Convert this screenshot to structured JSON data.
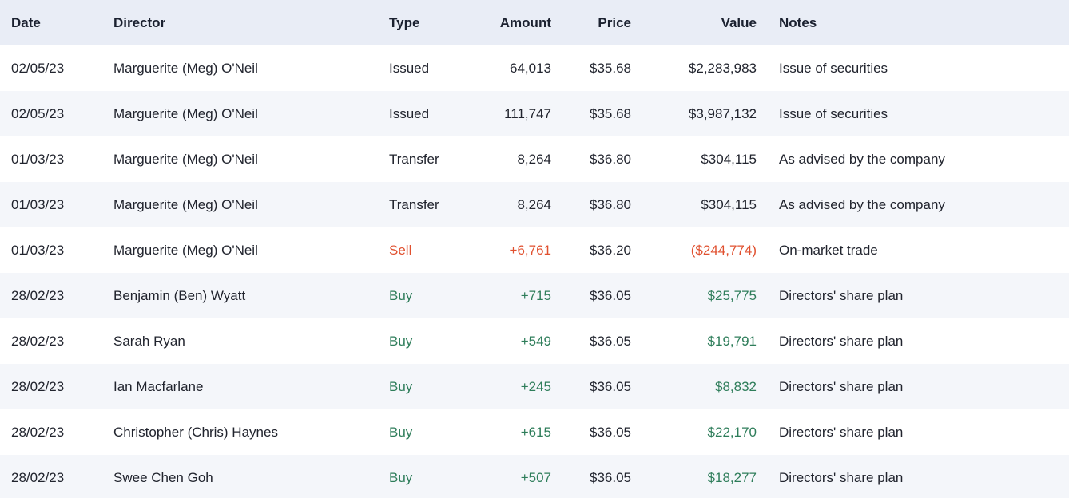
{
  "table": {
    "columns": [
      {
        "key": "date",
        "label": "Date",
        "align": "left"
      },
      {
        "key": "director",
        "label": "Director",
        "align": "left"
      },
      {
        "key": "type",
        "label": "Type",
        "align": "left"
      },
      {
        "key": "amount",
        "label": "Amount",
        "align": "right"
      },
      {
        "key": "price",
        "label": "Price",
        "align": "right"
      },
      {
        "key": "value",
        "label": "Value",
        "align": "right"
      },
      {
        "key": "notes",
        "label": "Notes",
        "align": "left"
      }
    ],
    "rows": [
      {
        "date": "02/05/23",
        "director": "Marguerite (Meg) O'Neil",
        "type": "Issued",
        "amount": "64,013",
        "price": "$35.68",
        "value": "$2,283,983",
        "notes": "Issue of securities",
        "sentiment": "neutral"
      },
      {
        "date": "02/05/23",
        "director": "Marguerite (Meg) O'Neil",
        "type": "Issued",
        "amount": "111,747",
        "price": "$35.68",
        "value": "$3,987,132",
        "notes": "Issue of securities",
        "sentiment": "neutral"
      },
      {
        "date": "01/03/23",
        "director": "Marguerite (Meg) O'Neil",
        "type": "Transfer",
        "amount": "8,264",
        "price": "$36.80",
        "value": "$304,115",
        "notes": "As advised by the company",
        "sentiment": "neutral"
      },
      {
        "date": "01/03/23",
        "director": "Marguerite (Meg) O'Neil",
        "type": "Transfer",
        "amount": "8,264",
        "price": "$36.80",
        "value": "$304,115",
        "notes": "As advised by the company",
        "sentiment": "neutral"
      },
      {
        "date": "01/03/23",
        "director": "Marguerite (Meg) O'Neil",
        "type": "Sell",
        "amount": "+6,761",
        "price": "$36.20",
        "value": "($244,774)",
        "notes": "On-market trade",
        "sentiment": "sell"
      },
      {
        "date": "28/02/23",
        "director": "Benjamin (Ben) Wyatt",
        "type": "Buy",
        "amount": "+715",
        "price": "$36.05",
        "value": "$25,775",
        "notes": "Directors' share plan",
        "sentiment": "buy"
      },
      {
        "date": "28/02/23",
        "director": "Sarah Ryan",
        "type": "Buy",
        "amount": "+549",
        "price": "$36.05",
        "value": "$19,791",
        "notes": "Directors' share plan",
        "sentiment": "buy"
      },
      {
        "date": "28/02/23",
        "director": "Ian Macfarlane",
        "type": "Buy",
        "amount": "+245",
        "price": "$36.05",
        "value": "$8,832",
        "notes": "Directors' share plan",
        "sentiment": "buy"
      },
      {
        "date": "28/02/23",
        "director": "Christopher (Chris) Haynes",
        "type": "Buy",
        "amount": "+615",
        "price": "$36.05",
        "value": "$22,170",
        "notes": "Directors' share plan",
        "sentiment": "buy"
      },
      {
        "date": "28/02/23",
        "director": "Swee Chen Goh",
        "type": "Buy",
        "amount": "+507",
        "price": "$36.05",
        "value": "$18,277",
        "notes": "Directors' share plan",
        "sentiment": "buy"
      }
    ]
  },
  "colors": {
    "buy": "#2e7d5a",
    "sell": "#e0502f",
    "header_bg": "#e9edf6",
    "stripe_bg": "#f4f6fa"
  }
}
